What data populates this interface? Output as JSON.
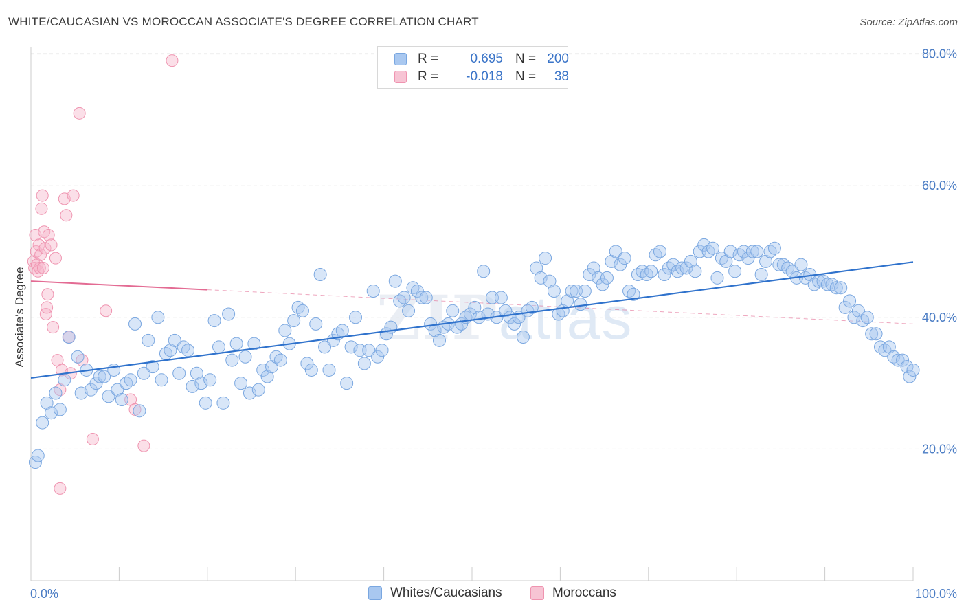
{
  "title": "WHITE/CAUCASIAN VS MOROCCAN ASSOCIATE'S DEGREE CORRELATION CHART",
  "source": "Source: ZipAtlas.com",
  "watermark": {
    "zip": "ZIP",
    "atlas": "atlas"
  },
  "legend": {
    "rows": [
      {
        "r_label": "R =",
        "r_value": "0.695",
        "n_label": "N =",
        "n_value": "200"
      },
      {
        "r_label": "R =",
        "r_value": "-0.018",
        "n_label": "N =",
        "n_value": "38"
      }
    ]
  },
  "bottom_legend": {
    "series1": "Whites/Caucasians",
    "series2": "Moroccans"
  },
  "colors": {
    "blue_fill": "#a9c8f0",
    "blue_stroke": "#7aa7e0",
    "blue_line": "#2f72cc",
    "pink_fill": "#f7b8cc",
    "pink_stroke": "#ef94b0",
    "pink_line": "#e36b93",
    "grid": "#e3e3e3",
    "axis": "#cccccc",
    "tick_text": "#4a7cc4"
  },
  "chart_data": {
    "type": "scatter",
    "title": "WHITE/CAUCASIAN VS MOROCCAN ASSOCIATE'S DEGREE CORRELATION CHART",
    "xlabel": "",
    "ylabel": "Associate's Degree",
    "xlim": [
      0,
      100
    ],
    "ylim": [
      0,
      83
    ],
    "x_tick_labels": [
      "0.0%",
      "100.0%"
    ],
    "y_ticks": [
      20,
      40,
      60,
      80
    ],
    "y_tick_labels": [
      "20.0%",
      "40.0%",
      "60.0%",
      "80.0%"
    ],
    "grid": true,
    "legend_position": "top-center",
    "series": [
      {
        "name": "Whites/Caucasians",
        "r": 0.695,
        "n": 200,
        "trend": {
          "x": [
            0,
            100
          ],
          "y": [
            30.8,
            48.4
          ]
        },
        "points": [
          [
            0.5,
            18
          ],
          [
            0.8,
            19
          ],
          [
            1.3,
            24
          ],
          [
            1.8,
            27
          ],
          [
            2.3,
            25.5
          ],
          [
            2.8,
            28.5
          ],
          [
            3.3,
            26
          ],
          [
            3.8,
            30.5
          ],
          [
            4.3,
            37
          ],
          [
            5.3,
            34
          ],
          [
            5.7,
            28.5
          ],
          [
            6.3,
            32
          ],
          [
            6.8,
            29
          ],
          [
            7.4,
            30
          ],
          [
            7.8,
            31
          ],
          [
            8.3,
            31
          ],
          [
            8.8,
            28
          ],
          [
            9.4,
            32
          ],
          [
            9.8,
            29
          ],
          [
            10.3,
            27.5
          ],
          [
            10.8,
            30
          ],
          [
            11.3,
            30.5
          ],
          [
            11.8,
            39
          ],
          [
            12.3,
            25.8
          ],
          [
            12.8,
            31.5
          ],
          [
            13.3,
            36.5
          ],
          [
            13.8,
            32.5
          ],
          [
            14.4,
            40
          ],
          [
            14.8,
            30.5
          ],
          [
            15.3,
            34.5
          ],
          [
            15.8,
            35
          ],
          [
            16.3,
            36.5
          ],
          [
            16.8,
            31.5
          ],
          [
            17.3,
            35.5
          ],
          [
            17.8,
            35
          ],
          [
            18.3,
            29.5
          ],
          [
            18.8,
            31.5
          ],
          [
            19.3,
            30
          ],
          [
            19.8,
            27
          ],
          [
            20.3,
            30.5
          ],
          [
            20.8,
            39.5
          ],
          [
            21.3,
            35.5
          ],
          [
            21.8,
            27
          ],
          [
            22.4,
            40.5
          ],
          [
            22.8,
            33.5
          ],
          [
            23.3,
            36
          ],
          [
            23.8,
            30
          ],
          [
            24.3,
            34
          ],
          [
            24.8,
            28.5
          ],
          [
            25.3,
            36
          ],
          [
            25.8,
            29
          ],
          [
            26.3,
            32
          ],
          [
            26.8,
            31
          ],
          [
            27.3,
            32.5
          ],
          [
            27.8,
            34
          ],
          [
            28.3,
            33.5
          ],
          [
            28.8,
            38
          ],
          [
            29.3,
            36
          ],
          [
            29.8,
            39.5
          ],
          [
            30.3,
            41.5
          ],
          [
            30.8,
            41
          ],
          [
            31.3,
            33
          ],
          [
            31.8,
            32
          ],
          [
            32.3,
            39
          ],
          [
            32.8,
            46.5
          ],
          [
            33.3,
            35.5
          ],
          [
            33.8,
            32
          ],
          [
            34.3,
            36.5
          ],
          [
            34.8,
            37.5
          ],
          [
            35.3,
            38
          ],
          [
            35.8,
            30
          ],
          [
            36.3,
            35.5
          ],
          [
            36.8,
            40
          ],
          [
            37.3,
            35
          ],
          [
            37.8,
            33
          ],
          [
            38.3,
            35
          ],
          [
            38.8,
            44
          ],
          [
            39.3,
            34
          ],
          [
            39.8,
            35
          ],
          [
            40.3,
            37.5
          ],
          [
            40.8,
            38.5
          ],
          [
            41.3,
            45.5
          ],
          [
            41.8,
            42.5
          ],
          [
            42.3,
            43
          ],
          [
            42.8,
            41
          ],
          [
            43.3,
            44.5
          ],
          [
            43.8,
            44
          ],
          [
            44.3,
            43
          ],
          [
            44.8,
            43
          ],
          [
            45.3,
            39
          ],
          [
            45.8,
            38
          ],
          [
            46.3,
            36.5
          ],
          [
            46.8,
            38.5
          ],
          [
            47.3,
            39
          ],
          [
            47.8,
            41
          ],
          [
            48.3,
            38.5
          ],
          [
            48.8,
            39
          ],
          [
            49.3,
            40
          ],
          [
            49.8,
            40.5
          ],
          [
            50.3,
            41.5
          ],
          [
            50.8,
            40
          ],
          [
            51.3,
            47
          ],
          [
            51.8,
            40.5
          ],
          [
            52.3,
            43
          ],
          [
            52.8,
            40
          ],
          [
            53.3,
            43
          ],
          [
            53.8,
            41
          ],
          [
            54.3,
            40
          ],
          [
            54.8,
            39
          ],
          [
            55.3,
            40
          ],
          [
            55.8,
            37
          ],
          [
            56.3,
            41
          ],
          [
            56.8,
            41.5
          ],
          [
            57.3,
            47.5
          ],
          [
            57.8,
            46
          ],
          [
            58.3,
            49
          ],
          [
            58.8,
            45.5
          ],
          [
            59.3,
            44
          ],
          [
            59.8,
            40.5
          ],
          [
            60.3,
            41
          ],
          [
            60.8,
            42.5
          ],
          [
            61.3,
            44
          ],
          [
            61.8,
            44
          ],
          [
            62.3,
            42
          ],
          [
            62.8,
            44
          ],
          [
            63.3,
            46.5
          ],
          [
            63.8,
            47.5
          ],
          [
            64.3,
            46
          ],
          [
            64.8,
            45
          ],
          [
            65.3,
            46
          ],
          [
            65.8,
            48.5
          ],
          [
            66.3,
            50
          ],
          [
            66.8,
            48
          ],
          [
            67.3,
            49
          ],
          [
            67.8,
            44
          ],
          [
            68.3,
            43.5
          ],
          [
            68.8,
            46.5
          ],
          [
            69.3,
            47
          ],
          [
            69.8,
            46.5
          ],
          [
            70.3,
            47
          ],
          [
            70.8,
            49.5
          ],
          [
            71.3,
            50
          ],
          [
            71.8,
            46.5
          ],
          [
            72.3,
            47.5
          ],
          [
            72.8,
            48
          ],
          [
            73.3,
            47
          ],
          [
            73.8,
            47.5
          ],
          [
            74.3,
            47.5
          ],
          [
            74.8,
            48.5
          ],
          [
            75.3,
            47
          ],
          [
            75.8,
            50
          ],
          [
            76.3,
            51
          ],
          [
            76.8,
            50
          ],
          [
            77.3,
            50.5
          ],
          [
            77.8,
            46
          ],
          [
            78.3,
            49
          ],
          [
            78.8,
            48.5
          ],
          [
            79.3,
            50
          ],
          [
            79.8,
            47
          ],
          [
            80.3,
            49.5
          ],
          [
            80.8,
            50
          ],
          [
            81.3,
            49
          ],
          [
            81.8,
            50
          ],
          [
            82.3,
            50
          ],
          [
            82.8,
            46.5
          ],
          [
            83.3,
            48.5
          ],
          [
            83.8,
            50
          ],
          [
            84.3,
            50.5
          ],
          [
            84.8,
            48
          ],
          [
            85.3,
            48
          ],
          [
            85.8,
            47.5
          ],
          [
            86.3,
            47
          ],
          [
            86.8,
            46
          ],
          [
            87.3,
            48
          ],
          [
            87.8,
            46
          ],
          [
            88.3,
            46.5
          ],
          [
            88.8,
            45
          ],
          [
            89.3,
            45.5
          ],
          [
            89.8,
            45.5
          ],
          [
            90.3,
            45
          ],
          [
            90.8,
            45
          ],
          [
            91.3,
            44.5
          ],
          [
            91.8,
            44.5
          ],
          [
            92.3,
            41.5
          ],
          [
            92.8,
            42.5
          ],
          [
            93.3,
            40
          ],
          [
            93.8,
            41
          ],
          [
            94.3,
            39.5
          ],
          [
            94.8,
            40
          ],
          [
            95.3,
            37.5
          ],
          [
            95.8,
            37.5
          ],
          [
            96.3,
            35.5
          ],
          [
            96.8,
            35
          ],
          [
            97.3,
            35.5
          ],
          [
            97.8,
            34
          ],
          [
            98.3,
            33.5
          ],
          [
            98.8,
            33.5
          ],
          [
            99.3,
            32.5
          ],
          [
            99.6,
            31
          ],
          [
            100,
            32
          ]
        ]
      },
      {
        "name": "Moroccans",
        "r": -0.018,
        "n": 38,
        "trend": {
          "x": [
            0,
            20
          ],
          "y": [
            45.5,
            44.2
          ]
        },
        "trend_extension": {
          "x": [
            20,
            100
          ],
          "y": [
            44.2,
            39
          ]
        },
        "points": [
          [
            0.3,
            48.5
          ],
          [
            0.4,
            47.5
          ],
          [
            0.5,
            52.5
          ],
          [
            0.6,
            50
          ],
          [
            0.7,
            48
          ],
          [
            0.8,
            47
          ],
          [
            0.9,
            51
          ],
          [
            1.0,
            47.5
          ],
          [
            1.1,
            49.5
          ],
          [
            1.2,
            56.5
          ],
          [
            1.3,
            58.5
          ],
          [
            1.4,
            47.5
          ],
          [
            1.5,
            53
          ],
          [
            1.6,
            50.5
          ],
          [
            1.7,
            40.5
          ],
          [
            1.8,
            41.5
          ],
          [
            1.9,
            43.5
          ],
          [
            2.0,
            52.5
          ],
          [
            2.3,
            51
          ],
          [
            2.5,
            38.5
          ],
          [
            2.8,
            49
          ],
          [
            3.0,
            33.5
          ],
          [
            3.3,
            29
          ],
          [
            3.5,
            32
          ],
          [
            3.8,
            58
          ],
          [
            4.0,
            55.5
          ],
          [
            4.3,
            37
          ],
          [
            4.5,
            31.5
          ],
          [
            4.8,
            58.5
          ],
          [
            5.5,
            71
          ],
          [
            5.8,
            33.5
          ],
          [
            7.0,
            21.5
          ],
          [
            8.5,
            41
          ],
          [
            3.3,
            14
          ],
          [
            11.3,
            27.5
          ],
          [
            11.8,
            26
          ],
          [
            12.8,
            20.5
          ],
          [
            16.0,
            79
          ]
        ]
      }
    ]
  }
}
